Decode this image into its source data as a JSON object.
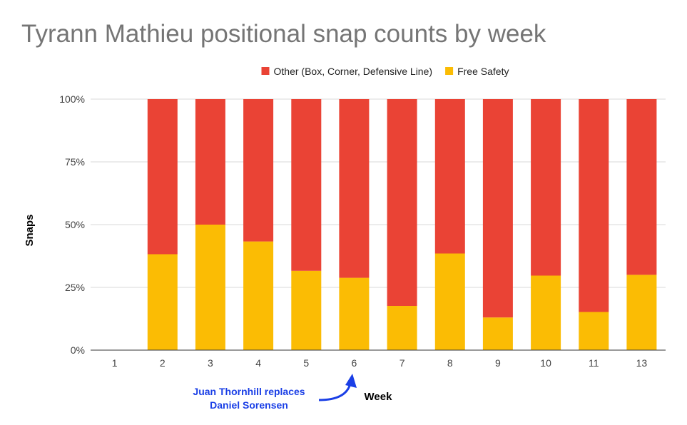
{
  "chart_data": {
    "type": "bar",
    "stacked": true,
    "title": "Tyrann Mathieu positional snap counts by week",
    "xlabel": "Week",
    "ylabel": "Snaps",
    "ylim": [
      0,
      100
    ],
    "y_ticks": [
      "0%",
      "25%",
      "50%",
      "75%",
      "100%"
    ],
    "grid": true,
    "legend_position": "top",
    "categories": [
      "1",
      "2",
      "3",
      "4",
      "5",
      "6",
      "7",
      "8",
      "9",
      "10",
      "11",
      "13"
    ],
    "series": [
      {
        "name": "Free Safety",
        "color": "#fbbc04",
        "values": [
          0,
          38.2,
          50,
          43.3,
          31.6,
          28.8,
          17.6,
          38.5,
          13.0,
          29.7,
          15.2,
          30.0
        ]
      },
      {
        "name": "Other (Box, Corner, Defensive Line)",
        "color": "#ea4335",
        "values": [
          0,
          61.8,
          50,
          56.7,
          68.4,
          71.2,
          82.4,
          61.5,
          87.0,
          70.3,
          84.8,
          70.0
        ]
      }
    ],
    "legend": [
      {
        "label": "Other (Box, Corner, Defensive Line)",
        "color": "#ea4335"
      },
      {
        "label": "Free Safety",
        "color": "#fbbc04"
      }
    ],
    "annotation": {
      "lines": [
        "Juan Thornhill replaces",
        "Daniel Sorensen"
      ],
      "color": "#1a3fe6",
      "points_to_category": "6"
    }
  }
}
